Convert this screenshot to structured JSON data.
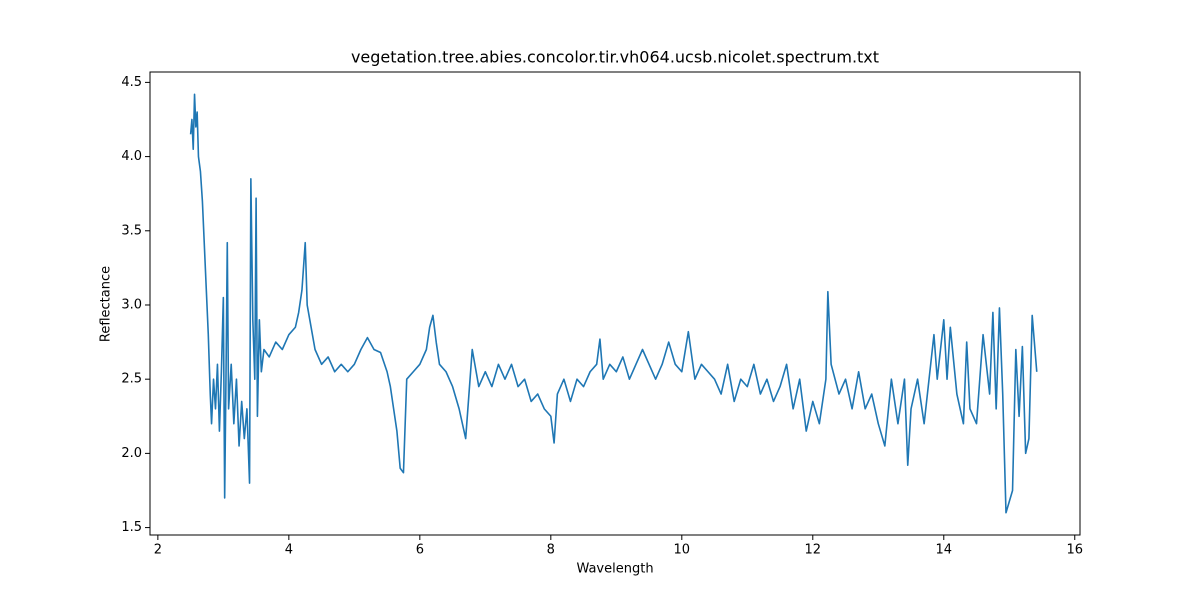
{
  "chart_data": {
    "type": "line",
    "title": "vegetation.tree.abies.concolor.tir.vh064.ucsb.nicolet.spectrum.txt",
    "xlabel": "Wavelength",
    "ylabel": "Reflectance",
    "color": "#1f77b4",
    "xlim": [
      1.88,
      16.08
    ],
    "ylim": [
      1.45,
      4.57
    ],
    "xticks": [
      2,
      4,
      6,
      8,
      10,
      12,
      14,
      16
    ],
    "yticks": [
      1.5,
      {
        "value": 2,
        "label": "2.0"
      },
      2.5,
      {
        "value": 3,
        "label": "3.0"
      },
      3.5,
      {
        "value": 4,
        "label": "4.0"
      },
      4.5
    ],
    "x": [
      2.5,
      2.52,
      2.54,
      2.56,
      2.58,
      2.6,
      2.62,
      2.65,
      2.68,
      2.71,
      2.74,
      2.77,
      2.8,
      2.82,
      2.85,
      2.88,
      2.91,
      2.94,
      2.97,
      3.0,
      3.02,
      3.04,
      3.06,
      3.08,
      3.12,
      3.16,
      3.2,
      3.24,
      3.28,
      3.32,
      3.36,
      3.4,
      3.42,
      3.45,
      3.48,
      3.5,
      3.52,
      3.55,
      3.58,
      3.62,
      3.7,
      3.8,
      3.9,
      4.0,
      4.1,
      4.15,
      4.2,
      4.25,
      4.28,
      4.32,
      4.4,
      4.5,
      4.6,
      4.7,
      4.8,
      4.9,
      5.0,
      5.1,
      5.2,
      5.3,
      5.4,
      5.5,
      5.55,
      5.6,
      5.65,
      5.7,
      5.75,
      5.8,
      5.9,
      6.0,
      6.1,
      6.15,
      6.2,
      6.25,
      6.3,
      6.4,
      6.5,
      6.6,
      6.7,
      6.8,
      6.9,
      7.0,
      7.1,
      7.2,
      7.3,
      7.4,
      7.5,
      7.6,
      7.7,
      7.8,
      7.9,
      8.0,
      8.05,
      8.1,
      8.2,
      8.3,
      8.4,
      8.5,
      8.6,
      8.7,
      8.75,
      8.8,
      8.9,
      9.0,
      9.1,
      9.2,
      9.3,
      9.4,
      9.5,
      9.6,
      9.7,
      9.8,
      9.9,
      10.0,
      10.1,
      10.2,
      10.3,
      10.4,
      10.5,
      10.6,
      10.7,
      10.8,
      10.9,
      11.0,
      11.1,
      11.2,
      11.3,
      11.4,
      11.5,
      11.6,
      11.7,
      11.8,
      11.9,
      12.0,
      12.1,
      12.2,
      12.23,
      12.28,
      12.4,
      12.5,
      12.6,
      12.7,
      12.8,
      12.9,
      13.0,
      13.1,
      13.2,
      13.3,
      13.4,
      13.45,
      13.5,
      13.6,
      13.7,
      13.8,
      13.85,
      13.9,
      14.0,
      14.05,
      14.1,
      14.2,
      14.3,
      14.35,
      14.4,
      14.5,
      14.6,
      14.7,
      14.75,
      14.8,
      14.85,
      14.9,
      14.95,
      15.05,
      15.1,
      15.15,
      15.2,
      15.25,
      15.3,
      15.35,
      15.42
    ],
    "values": [
      4.15,
      4.25,
      4.05,
      4.42,
      4.2,
      4.3,
      4.0,
      3.9,
      3.7,
      3.4,
      3.1,
      2.8,
      2.4,
      2.2,
      2.5,
      2.3,
      2.6,
      2.15,
      2.55,
      3.05,
      1.7,
      2.5,
      3.42,
      2.3,
      2.6,
      2.2,
      2.5,
      2.05,
      2.35,
      2.1,
      2.3,
      1.8,
      3.85,
      2.9,
      2.5,
      3.72,
      2.25,
      2.9,
      2.55,
      2.7,
      2.65,
      2.75,
      2.7,
      2.8,
      2.85,
      2.95,
      3.1,
      3.42,
      3.0,
      2.9,
      2.7,
      2.6,
      2.65,
      2.55,
      2.6,
      2.55,
      2.6,
      2.7,
      2.78,
      2.7,
      2.68,
      2.55,
      2.45,
      2.3,
      2.15,
      1.9,
      1.87,
      2.5,
      2.55,
      2.6,
      2.7,
      2.85,
      2.93,
      2.75,
      2.6,
      2.55,
      2.45,
      2.3,
      2.1,
      2.7,
      2.45,
      2.55,
      2.45,
      2.6,
      2.5,
      2.6,
      2.45,
      2.5,
      2.35,
      2.4,
      2.3,
      2.25,
      2.07,
      2.4,
      2.5,
      2.35,
      2.5,
      2.45,
      2.55,
      2.6,
      2.77,
      2.5,
      2.6,
      2.55,
      2.65,
      2.5,
      2.6,
      2.7,
      2.6,
      2.5,
      2.6,
      2.75,
      2.6,
      2.55,
      2.82,
      2.5,
      2.6,
      2.55,
      2.5,
      2.4,
      2.6,
      2.35,
      2.5,
      2.45,
      2.6,
      2.4,
      2.5,
      2.35,
      2.45,
      2.6,
      2.3,
      2.5,
      2.15,
      2.35,
      2.2,
      2.5,
      3.09,
      2.6,
      2.4,
      2.5,
      2.3,
      2.55,
      2.3,
      2.4,
      2.2,
      2.05,
      2.5,
      2.2,
      2.5,
      1.92,
      2.3,
      2.5,
      2.2,
      2.6,
      2.8,
      2.5,
      2.9,
      2.5,
      2.85,
      2.4,
      2.2,
      2.75,
      2.3,
      2.2,
      2.8,
      2.4,
      2.95,
      2.3,
      2.98,
      2.4,
      1.6,
      1.75,
      2.7,
      2.25,
      2.72,
      2.0,
      2.1,
      2.93,
      2.55
    ]
  }
}
